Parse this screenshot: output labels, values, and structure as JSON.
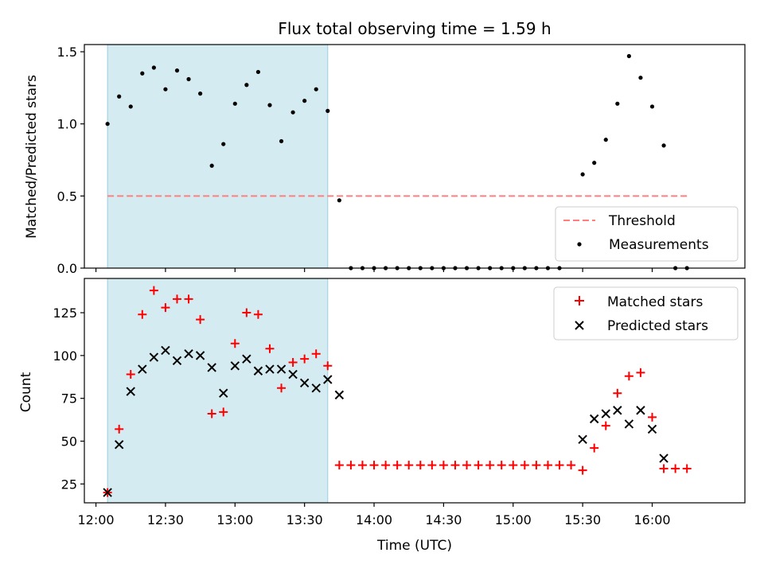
{
  "title": "Flux total observing time = 1.59 h",
  "chart_data": [
    {
      "type": "scatter",
      "panel": "top",
      "ylabel": "Matched/Predicted stars",
      "ylim": [
        0,
        1.55
      ],
      "yticks": [
        0.0,
        0.5,
        1.0,
        1.5
      ],
      "ytick_labels": [
        "0.0",
        "0.5",
        "1.0",
        "1.5"
      ],
      "shaded_interval": [
        "12:05",
        "13:40"
      ],
      "shade_color": "#add8e6",
      "threshold": {
        "name": "Threshold",
        "value": 0.5,
        "x_range": [
          "12:05",
          "16:15"
        ],
        "color": "#ff7f7f"
      },
      "series": [
        {
          "name": "Measurements",
          "color": "#000000",
          "x": [
            "12:05",
            "12:10",
            "12:15",
            "12:20",
            "12:25",
            "12:30",
            "12:35",
            "12:40",
            "12:45",
            "12:50",
            "12:55",
            "13:00",
            "13:05",
            "13:10",
            "13:15",
            "13:20",
            "13:25",
            "13:30",
            "13:35",
            "13:40",
            "13:45",
            "13:50",
            "13:55",
            "14:00",
            "14:05",
            "14:10",
            "14:15",
            "14:20",
            "14:25",
            "14:30",
            "14:35",
            "14:40",
            "14:45",
            "14:50",
            "14:55",
            "15:00",
            "15:05",
            "15:10",
            "15:15",
            "15:20",
            "15:25",
            "15:30",
            "15:35",
            "15:40",
            "15:45",
            "15:50",
            "15:55",
            "16:00",
            "16:05",
            "16:10",
            "16:15"
          ],
          "y": [
            1.0,
            1.19,
            1.12,
            1.35,
            1.39,
            1.24,
            1.37,
            1.31,
            1.21,
            0.71,
            0.86,
            1.14,
            1.27,
            1.36,
            1.13,
            0.88,
            1.08,
            1.16,
            1.24,
            1.09,
            0.47,
            0,
            0,
            0,
            0,
            0,
            0,
            0,
            0,
            0,
            0,
            0,
            0,
            0,
            0,
            0,
            0,
            0,
            0,
            0,
            null,
            0.65,
            0.73,
            0.89,
            1.14,
            1.47,
            1.32,
            1.12,
            0.85,
            0,
            0
          ]
        }
      ],
      "legend": {
        "placement": "lower-right",
        "entries": [
          "Threshold",
          "Measurements"
        ]
      }
    },
    {
      "type": "scatter",
      "panel": "bottom",
      "xlabel": "Time (UTC)",
      "ylabel": "Count",
      "ylim": [
        14,
        145
      ],
      "yticks": [
        25,
        50,
        75,
        100,
        125
      ],
      "xlim": [
        "11:55",
        "16:40"
      ],
      "xtick_labels": [
        "12:00",
        "12:30",
        "13:00",
        "13:30",
        "14:00",
        "14:30",
        "15:00",
        "15:30",
        "16:00"
      ],
      "shaded_interval": [
        "12:05",
        "13:40"
      ],
      "series": [
        {
          "name": "Matched stars",
          "marker": "+",
          "color": "#ff0000",
          "x": [
            "12:05",
            "12:10",
            "12:15",
            "12:20",
            "12:25",
            "12:30",
            "12:35",
            "12:40",
            "12:45",
            "12:50",
            "12:55",
            "13:00",
            "13:05",
            "13:10",
            "13:15",
            "13:20",
            "13:25",
            "13:30",
            "13:35",
            "13:40",
            "13:45",
            "13:50",
            "13:55",
            "14:00",
            "14:05",
            "14:10",
            "14:15",
            "14:20",
            "14:25",
            "14:30",
            "14:35",
            "14:40",
            "14:45",
            "14:50",
            "14:55",
            "15:00",
            "15:05",
            "15:10",
            "15:15",
            "15:20",
            "15:25",
            "15:30",
            "15:35",
            "15:40",
            "15:45",
            "15:50",
            "15:55",
            "16:00",
            "16:05",
            "16:10",
            "16:15"
          ],
          "y": [
            20,
            57,
            89,
            124,
            138,
            128,
            133,
            133,
            121,
            66,
            67,
            107,
            125,
            124,
            104,
            81,
            96,
            98,
            101,
            94,
            36,
            36,
            36,
            36,
            36,
            36,
            36,
            36,
            36,
            36,
            36,
            36,
            36,
            36,
            36,
            36,
            36,
            36,
            36,
            36,
            36,
            33,
            46,
            59,
            78,
            88,
            90,
            64,
            34,
            34,
            34
          ]
        },
        {
          "name": "Predicted stars",
          "marker": "x",
          "color": "#000000",
          "x": [
            "12:05",
            "12:10",
            "12:15",
            "12:20",
            "12:25",
            "12:30",
            "12:35",
            "12:40",
            "12:45",
            "12:50",
            "12:55",
            "13:00",
            "13:05",
            "13:10",
            "13:15",
            "13:20",
            "13:25",
            "13:30",
            "13:35",
            "13:40",
            "13:45",
            "15:30",
            "15:35",
            "15:40",
            "15:45",
            "15:50",
            "15:55",
            "16:00",
            "16:05"
          ],
          "y": [
            20,
            48,
            79,
            92,
            99,
            103,
            97,
            101,
            100,
            93,
            78,
            94,
            98,
            91,
            92,
            92,
            89,
            84,
            81,
            86,
            77,
            51,
            63,
            66,
            68,
            60,
            68,
            57,
            40
          ]
        }
      ],
      "legend": {
        "placement": "upper-right",
        "entries": [
          "Matched stars",
          "Predicted stars"
        ]
      }
    }
  ]
}
